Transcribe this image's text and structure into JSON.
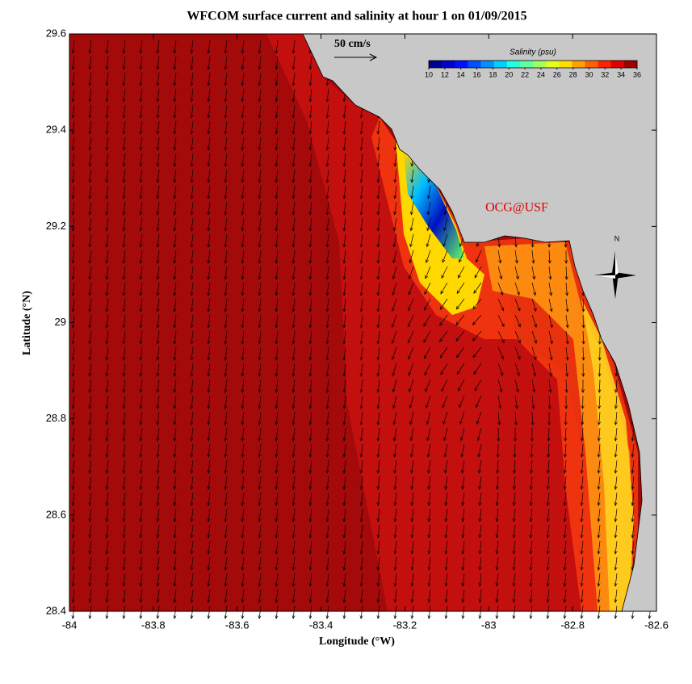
{
  "map": {
    "title": "WFCOM surface current and salinity at hour 1 on 01/09/2015",
    "x_axis": {
      "label": "Longitude (°W)",
      "lim": [
        -84,
        -82.6
      ],
      "ticks": [
        -84,
        -83.8,
        -83.6,
        -83.4,
        -83.2,
        -83,
        -82.8,
        -82.6
      ]
    },
    "y_axis": {
      "label": "Latitude (°N)",
      "lim": [
        28.4,
        29.6
      ],
      "ticks": [
        28.4,
        28.6,
        28.8,
        29,
        29.2,
        29.4,
        29.6
      ]
    },
    "colorbar": {
      "title": "Salinity (psu)",
      "lim": [
        10,
        36
      ],
      "ticks": [
        10,
        12,
        14,
        16,
        18,
        20,
        22,
        24,
        26,
        28,
        30,
        32,
        34,
        36
      ],
      "colors": [
        "#00008f",
        "#0000cf",
        "#0010ff",
        "#0050ff",
        "#0090ff",
        "#00d0ff",
        "#20ffdf",
        "#60ff9f",
        "#a0ff5f",
        "#e0ff1f",
        "#ffdf00",
        "#ffa000",
        "#ff6000",
        "#ff2000",
        "#df0000",
        "#9f0000"
      ]
    },
    "scale_label": "50 cm/s",
    "watermark": "OCG@USF",
    "compass": "N"
  }
}
